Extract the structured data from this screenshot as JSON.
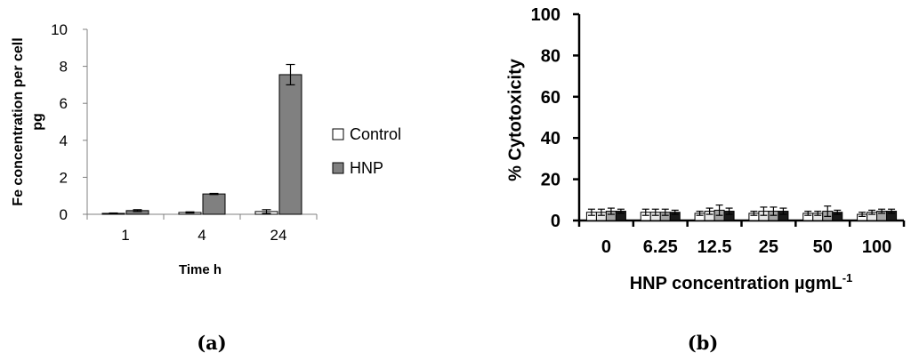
{
  "panels": {
    "a": {
      "label": "(a)"
    },
    "b": {
      "label": "(b)"
    }
  },
  "chart_data": [
    {
      "id": "a",
      "type": "bar",
      "categories": [
        "1",
        "4",
        "24"
      ],
      "series": [
        {
          "name": "Control",
          "color": "#ffffff",
          "values": [
            0.05,
            0.1,
            0.15
          ],
          "errors": [
            0.02,
            0.03,
            0.1
          ]
        },
        {
          "name": "HNP",
          "color": "#808080",
          "values": [
            0.2,
            1.1,
            7.55
          ],
          "errors": [
            0.05,
            0.03,
            0.55
          ]
        }
      ],
      "ylim": [
        0,
        10
      ],
      "yticks": [
        "0",
        "2",
        "4",
        "6",
        "8",
        "10"
      ],
      "xlabel": "Time h",
      "ylabel_lines": [
        "Fe concentration per cell",
        "pg"
      ],
      "legend": "right"
    },
    {
      "id": "b",
      "type": "bar",
      "categories": [
        "0",
        "6.25",
        "12.5",
        "25",
        "50",
        "100"
      ],
      "series": [
        {
          "color": "#ffffff",
          "values": [
            4,
            4,
            3.5,
            3.5,
            3.5,
            3
          ],
          "errors": [
            1.5,
            1.5,
            1,
            1,
            1,
            1
          ]
        },
        {
          "color": "#e8e8e8",
          "values": [
            4,
            4,
            4.5,
            4.5,
            3.5,
            4
          ],
          "errors": [
            1.5,
            1.5,
            1.5,
            2,
            1,
            1
          ]
        },
        {
          "color": "#a6a6a6",
          "values": [
            4.5,
            4,
            5,
            4.5,
            4.5,
            4.5
          ],
          "errors": [
            1.5,
            1.5,
            2.5,
            2,
            2.5,
            1
          ]
        },
        {
          "color": "#1a1a1a",
          "values": [
            4.5,
            4,
            4.5,
            4.5,
            4,
            4.5
          ],
          "errors": [
            1,
            1,
            1.5,
            1.5,
            1,
            1
          ]
        }
      ],
      "ylim": [
        0,
        100
      ],
      "yticks": [
        "0",
        "20",
        "40",
        "60",
        "80",
        "100"
      ],
      "xlabel": "HNP concentration µgmL",
      "xlabel_sup": "-1",
      "ylabel": "% Cytotoxicity"
    }
  ]
}
